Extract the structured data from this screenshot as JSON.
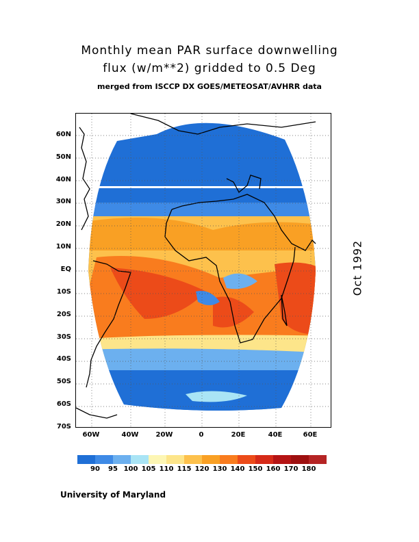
{
  "title": {
    "line1": "Monthly mean PAR surface downwelling",
    "line2": "flux (w/m**2) gridded to 0.5 Deg",
    "line3": "merged from ISCCP DX GOES/METEOSAT/AVHRR data"
  },
  "date": "Oct 1992",
  "footer": "University of Maryland",
  "axes": {
    "lat_labels": [
      "60N",
      "50N",
      "40N",
      "30N",
      "20N",
      "10N",
      "EQ",
      "10S",
      "20S",
      "30S",
      "40S",
      "50S",
      "60S",
      "70S"
    ],
    "lat_values": [
      60,
      50,
      40,
      30,
      20,
      10,
      0,
      -10,
      -20,
      -30,
      -40,
      -50,
      -60,
      -70
    ],
    "lon_labels": [
      "60W",
      "40W",
      "20W",
      "0",
      "20E",
      "40E",
      "60E"
    ],
    "lon_values": [
      -60,
      -40,
      -20,
      0,
      20,
      40,
      60
    ],
    "lat_range": [
      -70,
      70
    ],
    "lon_range": [
      -70,
      70
    ]
  },
  "colorbar": {
    "colors": [
      "#1f6fd6",
      "#3e8ae6",
      "#6cb0ef",
      "#a9e4f5",
      "#fdf6b4",
      "#fde58a",
      "#fdc14c",
      "#f9a024",
      "#f97c1e",
      "#ec4b19",
      "#d62a18",
      "#b51414",
      "#9e1010",
      "#b52424"
    ],
    "labels": [
      "90",
      "95",
      "100",
      "105",
      "110",
      "115",
      "120",
      "130",
      "140",
      "150",
      "160",
      "170",
      "180"
    ]
  }
}
